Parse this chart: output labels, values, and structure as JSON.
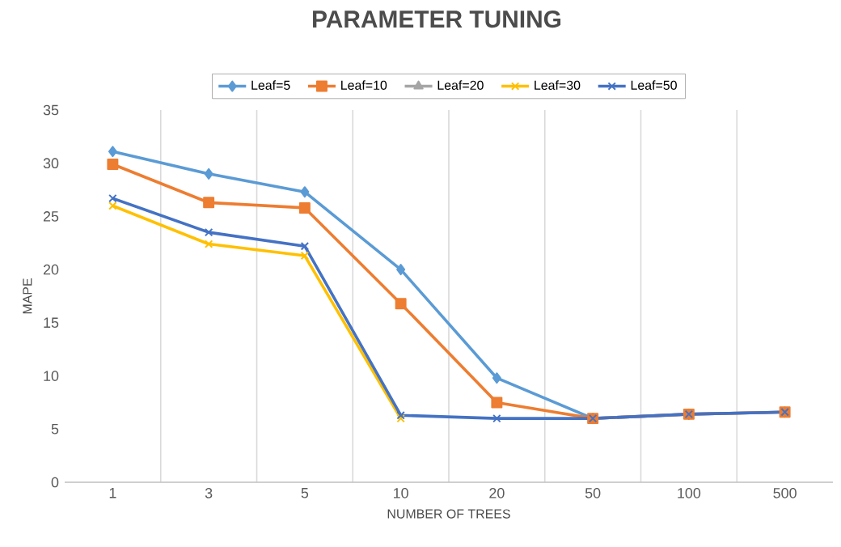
{
  "chart_data": {
    "type": "line",
    "title": "PARAMETER TUNING",
    "xlabel": "NUMBER OF TREES",
    "ylabel": "MAPE",
    "categories": [
      "1",
      "3",
      "5",
      "10",
      "20",
      "50",
      "100",
      "500"
    ],
    "ylim": [
      0,
      35
    ],
    "yticks": [
      0,
      5,
      10,
      15,
      20,
      25,
      30,
      35
    ],
    "grid": "x",
    "legend": "top",
    "series": [
      {
        "name": "Leaf=5",
        "color": "#5b9bd5",
        "marker": "diamond",
        "values": [
          31.1,
          29.0,
          27.3,
          20.0,
          9.8,
          6.0,
          6.4,
          6.6
        ]
      },
      {
        "name": "Leaf=10",
        "color": "#ed7d31",
        "marker": "square",
        "values": [
          29.9,
          26.3,
          25.8,
          16.8,
          7.5,
          6.0,
          6.4,
          6.6
        ]
      },
      {
        "name": "Leaf=20",
        "color": "#a5a5a5",
        "marker": "triangle",
        "values": [
          null,
          null,
          null,
          null,
          null,
          null,
          null,
          null
        ]
      },
      {
        "name": "Leaf=30",
        "color": "#ffc000",
        "marker": "cross",
        "values": [
          26.0,
          22.4,
          21.3,
          6.0,
          null,
          null,
          null,
          null
        ]
      },
      {
        "name": "Leaf=50",
        "color": "#4472c4",
        "marker": "cross",
        "values": [
          26.7,
          23.5,
          22.2,
          6.3,
          6.0,
          6.0,
          6.4,
          6.6
        ]
      }
    ]
  }
}
